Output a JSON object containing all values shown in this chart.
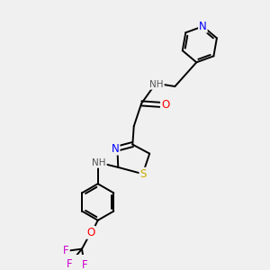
{
  "bg_color": "#f0f0f0",
  "atom_colors": {
    "N": "#0000ff",
    "O": "#ff0000",
    "S": "#ccaa00",
    "F": "#cc00cc",
    "H": "#555555",
    "C": "#000000"
  },
  "bond_color": "#000000",
  "bond_width": 1.4
}
